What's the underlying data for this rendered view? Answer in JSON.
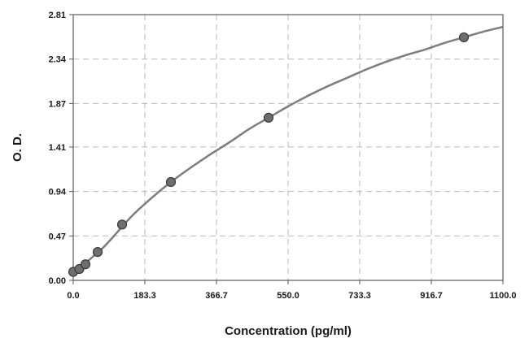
{
  "chart_data": {
    "type": "scatter",
    "xlabel": "Concentration (pg/ml)",
    "ylabel": "O. D.",
    "xlim": [
      0,
      1100
    ],
    "ylim": [
      0,
      2.81
    ],
    "x_ticks": [
      "0.0",
      "183.3",
      "366.7",
      "550.0",
      "733.3",
      "916.7",
      "1100.0"
    ],
    "x_tick_values": [
      0,
      183.3,
      366.7,
      550.0,
      733.3,
      916.7,
      1100.0
    ],
    "y_ticks": [
      "0.00",
      "0.47",
      "0.94",
      "1.41",
      "1.87",
      "2.34",
      "2.81"
    ],
    "y_tick_values": [
      0,
      0.47,
      0.94,
      1.41,
      1.87,
      2.34,
      2.81
    ],
    "grid": true,
    "points": {
      "x": [
        0,
        15.6,
        31.25,
        62.5,
        125,
        250,
        500,
        1000
      ],
      "y": [
        0.09,
        0.12,
        0.17,
        0.3,
        0.59,
        1.04,
        1.72,
        2.57
      ]
    },
    "fit_curve": {
      "x": [
        0,
        25,
        50,
        75,
        100,
        150,
        200,
        250,
        300,
        350,
        400,
        450,
        500,
        550,
        600,
        650,
        700,
        750,
        800,
        850,
        900,
        950,
        1000,
        1050,
        1100
      ],
      "y": [
        0.09,
        0.16,
        0.25,
        0.34,
        0.45,
        0.68,
        0.87,
        1.04,
        1.19,
        1.33,
        1.46,
        1.6,
        1.72,
        1.84,
        1.95,
        2.05,
        2.14,
        2.23,
        2.31,
        2.38,
        2.44,
        2.51,
        2.57,
        2.63,
        2.68
      ]
    },
    "colors": {
      "curve": "#7d7d7d",
      "point_fill": "#6e6e6e",
      "point_stroke": "#3a3a3a",
      "grid": "#b8b8b8"
    }
  }
}
